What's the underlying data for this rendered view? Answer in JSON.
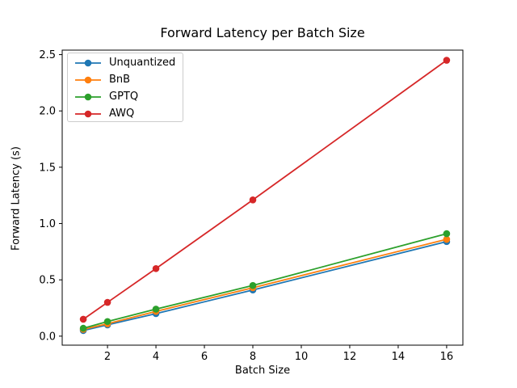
{
  "figure": {
    "background": "#ffffff",
    "axis_color": "#000000",
    "text_color": "#000000",
    "legend_border_color": "#cccccc"
  },
  "chart_data": {
    "type": "line",
    "title": "Forward Latency per Batch Size",
    "xlabel": "Batch Size",
    "ylabel": "Forward Latency (s)",
    "x": [
      1,
      2,
      4,
      8,
      16
    ],
    "series": [
      {
        "name": "Unquantized",
        "color": "#1f77b4",
        "values": [
          0.05,
          0.1,
          0.2,
          0.41,
          0.84
        ]
      },
      {
        "name": "BnB",
        "color": "#ff7f0e",
        "values": [
          0.06,
          0.11,
          0.22,
          0.43,
          0.86
        ]
      },
      {
        "name": "GPTQ",
        "color": "#2ca02c",
        "values": [
          0.07,
          0.13,
          0.24,
          0.45,
          0.91
        ]
      },
      {
        "name": "AWQ",
        "color": "#d62728",
        "values": [
          0.15,
          0.3,
          0.6,
          1.21,
          2.45
        ]
      }
    ],
    "xticks": [
      2,
      4,
      6,
      8,
      10,
      12,
      14,
      16
    ],
    "xtick_labels": [
      "2",
      "4",
      "6",
      "8",
      "10",
      "12",
      "14",
      "16"
    ],
    "yticks": [
      0.0,
      0.5,
      1.0,
      1.5,
      2.0,
      2.5
    ],
    "ytick_labels": [
      "0.0",
      "0.5",
      "1.0",
      "1.5",
      "2.0",
      "2.5"
    ],
    "xlim": [
      0.13,
      16.67
    ],
    "ylim": [
      -0.08,
      2.54
    ],
    "grid": false,
    "legend_position": "upper-left",
    "marker": "o"
  }
}
